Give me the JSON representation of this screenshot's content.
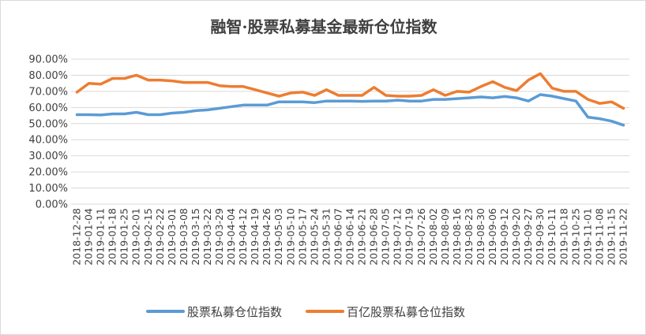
{
  "chart_data": {
    "type": "line",
    "title": "融智·股票私募基金最新仓位指数",
    "xlabel": "",
    "ylabel": "",
    "ylim": [
      0,
      0.9
    ],
    "yticks": [
      0.0,
      0.1,
      0.2,
      0.3,
      0.4,
      0.5,
      0.6,
      0.7,
      0.8,
      0.9
    ],
    "ytick_labels": [
      "0.00%",
      "10.00%",
      "20.00%",
      "30.00%",
      "40.00%",
      "50.00%",
      "60.00%",
      "70.00%",
      "80.00%",
      "90.00%"
    ],
    "legend_position": "bottom",
    "grid": true,
    "x": [
      "2018-12-28",
      "2019-01-04",
      "2019-01-11",
      "2019-01-18",
      "2019-01-25",
      "2019-02-01",
      "2019-02-15",
      "2019-02-22",
      "2019-03-01",
      "2019-03-08",
      "2019-03-15",
      "2019-03-22",
      "2019-03-29",
      "2019-04-04",
      "2019-04-12",
      "2019-04-19",
      "2019-04-26",
      "2019-05-03",
      "2019-05-10",
      "2019-05-17",
      "2019-05-24",
      "2019-05-31",
      "2019-06-07",
      "2019-06-14",
      "2019-06-21",
      "2019-06-28",
      "2019-07-05",
      "2019-07-12",
      "2019-07-19",
      "2019-07-26",
      "2019-08-02",
      "2019-08-09",
      "2019-08-16",
      "2019-08-23",
      "2019-08-30",
      "2019-09-06",
      "2019-09-12",
      "2019-09-20",
      "2019-09-27",
      "2019-09-30",
      "2019-10-11",
      "2019-10-18",
      "2019-10-25",
      "2019-11-01",
      "2019-11-08",
      "2019-11-15",
      "2019-11-22"
    ],
    "series": [
      {
        "name": "股票私募仓位指数",
        "color": "#5b9bd5",
        "values": [
          0.555,
          0.555,
          0.553,
          0.56,
          0.56,
          0.57,
          0.555,
          0.555,
          0.565,
          0.57,
          0.58,
          0.585,
          0.595,
          0.605,
          0.615,
          0.615,
          0.615,
          0.635,
          0.635,
          0.635,
          0.63,
          0.64,
          0.64,
          0.64,
          0.638,
          0.64,
          0.64,
          0.645,
          0.64,
          0.64,
          0.65,
          0.65,
          0.655,
          0.66,
          0.665,
          0.66,
          0.668,
          0.66,
          0.64,
          0.68,
          0.67,
          0.655,
          0.64,
          0.54,
          0.53,
          0.515,
          0.49
        ]
      },
      {
        "name": "百亿股票私募仓位指数",
        "color": "#ed7d31",
        "values": [
          0.695,
          0.75,
          0.745,
          0.78,
          0.78,
          0.8,
          0.77,
          0.77,
          0.765,
          0.755,
          0.755,
          0.755,
          0.735,
          0.73,
          0.73,
          0.71,
          0.69,
          0.67,
          0.69,
          0.695,
          0.675,
          0.71,
          0.675,
          0.675,
          0.675,
          0.725,
          0.675,
          0.67,
          0.67,
          0.675,
          0.71,
          0.675,
          0.7,
          0.695,
          0.73,
          0.76,
          0.725,
          0.705,
          0.77,
          0.81,
          0.72,
          0.7,
          0.7,
          0.65,
          0.625,
          0.635,
          0.595
        ]
      }
    ]
  }
}
